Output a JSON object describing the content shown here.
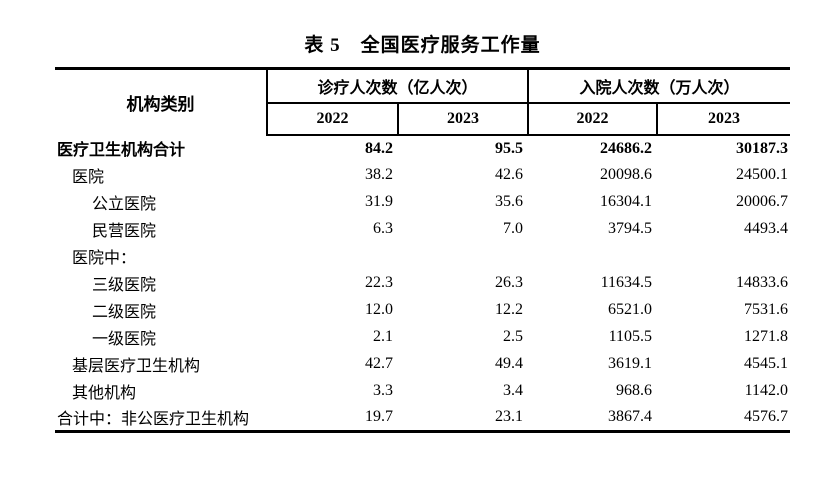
{
  "title": "表 5　全国医疗服务工作量",
  "table": {
    "category_header": "机构类别",
    "groups": [
      {
        "label": "诊疗人次数（亿人次）",
        "years": [
          "2022",
          "2023"
        ]
      },
      {
        "label": "入院人次数（万人次）",
        "years": [
          "2022",
          "2023"
        ]
      }
    ],
    "rows": [
      {
        "label": "医疗卫生机构合计",
        "indent": 0,
        "bold": true,
        "values": [
          "84.2",
          "95.5",
          "24686.2",
          "30187.3"
        ]
      },
      {
        "label": "医院",
        "indent": 1,
        "bold": false,
        "values": [
          "38.2",
          "42.6",
          "20098.6",
          "24500.1"
        ]
      },
      {
        "label": "公立医院",
        "indent": 2,
        "bold": false,
        "values": [
          "31.9",
          "35.6",
          "16304.1",
          "20006.7"
        ]
      },
      {
        "label": "民营医院",
        "indent": 2,
        "bold": false,
        "values": [
          "6.3",
          "7.0",
          "3794.5",
          "4493.4"
        ]
      },
      {
        "label": "医院中：",
        "indent": 1,
        "bold": false,
        "values": [
          "",
          "",
          "",
          ""
        ]
      },
      {
        "label": "三级医院",
        "indent": 2,
        "bold": false,
        "values": [
          "22.3",
          "26.3",
          "11634.5",
          "14833.6"
        ]
      },
      {
        "label": "二级医院",
        "indent": 2,
        "bold": false,
        "values": [
          "12.0",
          "12.2",
          "6521.0",
          "7531.6"
        ]
      },
      {
        "label": "一级医院",
        "indent": 2,
        "bold": false,
        "values": [
          "2.1",
          "2.5",
          "1105.5",
          "1271.8"
        ]
      },
      {
        "label": "基层医疗卫生机构",
        "indent": 1,
        "bold": false,
        "values": [
          "42.7",
          "49.4",
          "3619.1",
          "4545.1"
        ]
      },
      {
        "label": "其他机构",
        "indent": 1,
        "bold": false,
        "values": [
          "3.3",
          "3.4",
          "968.6",
          "1142.0"
        ]
      },
      {
        "label": "合计中：非公医疗卫生机构",
        "indent": 0,
        "bold": false,
        "values": [
          "19.7",
          "23.1",
          "3867.4",
          "4576.7"
        ]
      }
    ],
    "colors": {
      "border": "#000000",
      "text": "#000000",
      "background": "#ffffff"
    }
  }
}
